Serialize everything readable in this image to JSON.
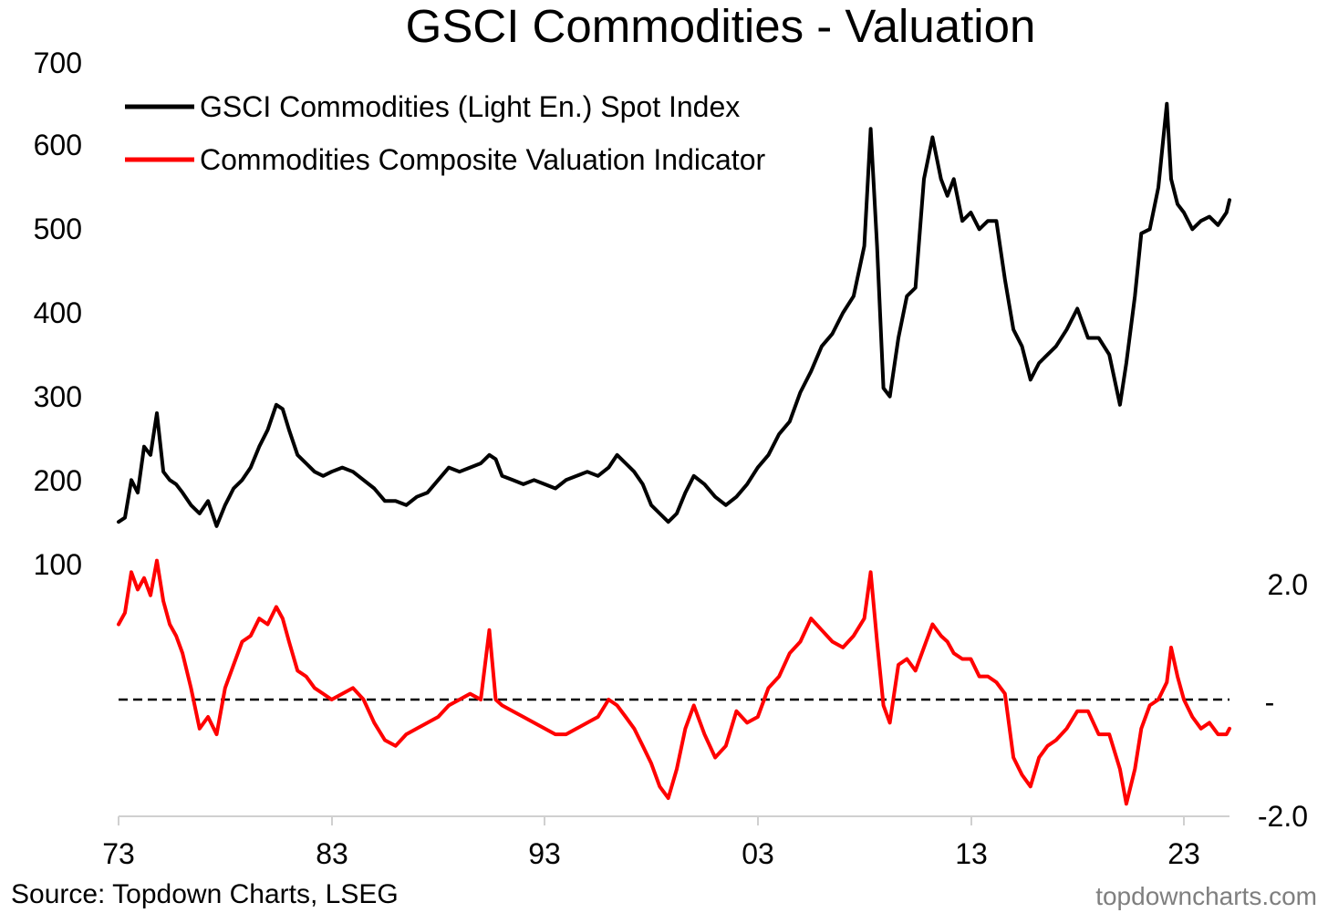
{
  "chart_data": {
    "type": "line",
    "title": "GSCI Commodities - Valuation",
    "source": "Source: Topdown Charts, LSEG",
    "watermark": "topdowncharts.com",
    "x_ticks": [
      "73",
      "83",
      "93",
      "03",
      "13",
      "23"
    ],
    "x_range": [
      1973,
      2025.5
    ],
    "y_left": {
      "ticks": [
        "700",
        "600",
        "500",
        "400",
        "300",
        "200",
        "100"
      ],
      "range": [
        100,
        700
      ]
    },
    "y_right": {
      "ticks": [
        "2.0",
        "-",
        "-2.0"
      ],
      "range": [
        -2.0,
        2.0
      ]
    },
    "zero_line": {
      "style": "dashed",
      "value": 0
    },
    "grid": false,
    "legend_position": "top-left",
    "series": [
      {
        "name": "GSCI Commodities (Light En.) Spot Index",
        "color": "#000000",
        "axis": "left",
        "x": [
          1973.0,
          1973.3,
          1973.6,
          1973.9,
          1974.2,
          1974.5,
          1974.8,
          1975.1,
          1975.4,
          1975.7,
          1976.0,
          1976.4,
          1976.8,
          1977.2,
          1977.6,
          1978.0,
          1978.4,
          1978.8,
          1979.2,
          1979.6,
          1980.0,
          1980.4,
          1980.7,
          1981.0,
          1981.4,
          1981.8,
          1982.2,
          1982.6,
          1983.0,
          1983.5,
          1984.0,
          1984.5,
          1985.0,
          1985.5,
          1986.0,
          1986.5,
          1987.0,
          1987.5,
          1988.0,
          1988.5,
          1989.0,
          1989.5,
          1990.0,
          1990.4,
          1990.7,
          1991.0,
          1991.5,
          1992.0,
          1992.5,
          1993.0,
          1993.5,
          1994.0,
          1994.5,
          1995.0,
          1995.5,
          1996.0,
          1996.4,
          1996.8,
          1997.2,
          1997.6,
          1998.0,
          1998.4,
          1998.8,
          1999.2,
          1999.6,
          2000.0,
          2000.5,
          2001.0,
          2001.5,
          2002.0,
          2002.5,
          2003.0,
          2003.5,
          2004.0,
          2004.5,
          2005.0,
          2005.5,
          2006.0,
          2006.5,
          2007.0,
          2007.5,
          2008.0,
          2008.3,
          2008.6,
          2008.9,
          2009.2,
          2009.6,
          2010.0,
          2010.4,
          2010.8,
          2011.2,
          2011.6,
          2011.9,
          2012.2,
          2012.6,
          2013.0,
          2013.4,
          2013.8,
          2014.2,
          2014.6,
          2015.0,
          2015.4,
          2015.8,
          2016.2,
          2016.6,
          2017.0,
          2017.5,
          2018.0,
          2018.5,
          2019.0,
          2019.5,
          2020.0,
          2020.3,
          2020.7,
          2021.0,
          2021.4,
          2021.8,
          2022.2,
          2022.4,
          2022.7,
          2023.0,
          2023.4,
          2023.8,
          2024.2,
          2024.6,
          2025.0,
          2025.3
        ],
        "y": [
          150,
          155,
          200,
          185,
          240,
          230,
          280,
          210,
          200,
          195,
          185,
          170,
          160,
          175,
          145,
          170,
          190,
          200,
          215,
          240,
          260,
          290,
          285,
          260,
          230,
          220,
          210,
          205,
          210,
          215,
          210,
          200,
          190,
          175,
          175,
          170,
          180,
          185,
          200,
          215,
          210,
          215,
          220,
          230,
          225,
          205,
          200,
          195,
          200,
          195,
          190,
          200,
          205,
          210,
          205,
          215,
          230,
          220,
          210,
          195,
          170,
          160,
          150,
          160,
          185,
          205,
          195,
          180,
          170,
          180,
          195,
          215,
          230,
          255,
          270,
          305,
          330,
          360,
          375,
          400,
          420,
          480,
          620,
          480,
          310,
          300,
          370,
          420,
          430,
          560,
          610,
          560,
          540,
          560,
          510,
          520,
          500,
          510,
          510,
          440,
          380,
          360,
          320,
          340,
          350,
          360,
          380,
          405,
          370,
          370,
          350,
          290,
          340,
          420,
          495,
          500,
          550,
          650,
          560,
          530,
          520,
          500,
          510,
          515,
          505,
          520,
          535
        ]
      },
      {
        "name": "Commodities Composite Valuation Indicator",
        "color": "#ff0000",
        "axis": "right",
        "x": [
          1973.0,
          1973.3,
          1973.6,
          1973.9,
          1974.2,
          1974.5,
          1974.8,
          1975.1,
          1975.4,
          1975.7,
          1976.0,
          1976.4,
          1976.8,
          1977.2,
          1977.6,
          1978.0,
          1978.4,
          1978.8,
          1979.2,
          1979.6,
          1980.0,
          1980.4,
          1980.7,
          1981.0,
          1981.4,
          1981.8,
          1982.2,
          1982.6,
          1983.0,
          1983.5,
          1984.0,
          1984.5,
          1985.0,
          1985.5,
          1986.0,
          1986.5,
          1987.0,
          1987.5,
          1988.0,
          1988.5,
          1989.0,
          1989.5,
          1990.0,
          1990.4,
          1990.7,
          1991.0,
          1991.5,
          1992.0,
          1992.5,
          1993.0,
          1993.5,
          1994.0,
          1994.5,
          1995.0,
          1995.5,
          1996.0,
          1996.4,
          1996.8,
          1997.2,
          1997.6,
          1998.0,
          1998.4,
          1998.8,
          1999.2,
          1999.6,
          2000.0,
          2000.5,
          2001.0,
          2001.5,
          2002.0,
          2002.5,
          2003.0,
          2003.5,
          2004.0,
          2004.5,
          2005.0,
          2005.5,
          2006.0,
          2006.5,
          2007.0,
          2007.5,
          2008.0,
          2008.3,
          2008.6,
          2008.9,
          2009.2,
          2009.6,
          2010.0,
          2010.4,
          2010.8,
          2011.2,
          2011.6,
          2011.9,
          2012.2,
          2012.6,
          2013.0,
          2013.4,
          2013.8,
          2014.2,
          2014.6,
          2015.0,
          2015.4,
          2015.8,
          2016.2,
          2016.6,
          2017.0,
          2017.5,
          2018.0,
          2018.5,
          2019.0,
          2019.5,
          2020.0,
          2020.3,
          2020.7,
          2021.0,
          2021.4,
          2021.8,
          2022.2,
          2022.4,
          2022.7,
          2023.0,
          2023.4,
          2023.8,
          2024.2,
          2024.6,
          2025.0,
          2025.3
        ],
        "y": [
          1.3,
          1.5,
          2.2,
          1.9,
          2.1,
          1.8,
          2.4,
          1.7,
          1.3,
          1.1,
          0.8,
          0.2,
          -0.5,
          -0.3,
          -0.6,
          0.2,
          0.6,
          1.0,
          1.1,
          1.4,
          1.3,
          1.6,
          1.4,
          1.0,
          0.5,
          0.4,
          0.2,
          0.1,
          0.0,
          0.1,
          0.2,
          0.0,
          -0.4,
          -0.7,
          -0.8,
          -0.6,
          -0.5,
          -0.4,
          -0.3,
          -0.1,
          0.0,
          0.1,
          0.0,
          1.2,
          0.0,
          -0.1,
          -0.2,
          -0.3,
          -0.4,
          -0.5,
          -0.6,
          -0.6,
          -0.5,
          -0.4,
          -0.3,
          0.0,
          -0.1,
          -0.3,
          -0.5,
          -0.8,
          -1.1,
          -1.5,
          -1.7,
          -1.2,
          -0.5,
          -0.1,
          -0.6,
          -1.0,
          -0.8,
          -0.2,
          -0.4,
          -0.3,
          0.2,
          0.4,
          0.8,
          1.0,
          1.4,
          1.2,
          1.0,
          0.9,
          1.1,
          1.4,
          2.2,
          1.0,
          -0.1,
          -0.4,
          0.6,
          0.7,
          0.5,
          0.9,
          1.3,
          1.1,
          1.0,
          0.8,
          0.7,
          0.7,
          0.4,
          0.4,
          0.3,
          0.1,
          -1.0,
          -1.3,
          -1.5,
          -1.0,
          -0.8,
          -0.7,
          -0.5,
          -0.2,
          -0.2,
          -0.6,
          -0.6,
          -1.2,
          -1.8,
          -1.2,
          -0.5,
          -0.1,
          0.0,
          0.3,
          0.9,
          0.4,
          0.0,
          -0.3,
          -0.5,
          -0.4,
          -0.6,
          -0.6,
          -0.5
        ]
      }
    ]
  }
}
